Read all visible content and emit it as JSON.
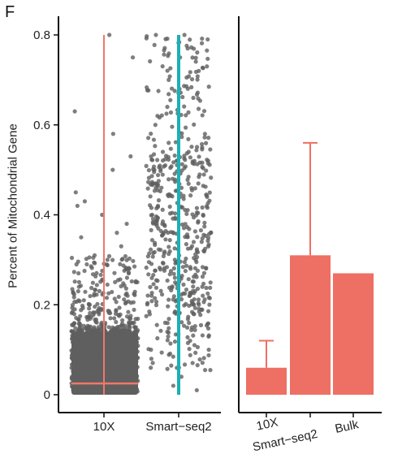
{
  "panel_label": "F",
  "colors": {
    "point": "#5f5f5f",
    "tenx_line": "#f0776b",
    "smartseq_line": "#1bb0b5",
    "bar": "#ee6f63",
    "axis": "#111111"
  },
  "chart_data": [
    {
      "type": "scatter",
      "title": "",
      "ylabel": "Percent of Mitochondrial Gene",
      "xlabel": "",
      "ylim": [
        0,
        0.82
      ],
      "yticks": [
        "0",
        "0.2",
        "0.4",
        "0.6",
        "0.8"
      ],
      "ytick_values": [
        0,
        0.2,
        0.4,
        0.6,
        0.8
      ],
      "categories": [
        "10X",
        "Smart−seq2"
      ],
      "series": [
        {
          "category": "10X",
          "summary": {
            "dense_band_max": 0.14,
            "line_min": 0.0,
            "line_max": 0.8,
            "horizontal_mark": 0.025
          },
          "sparse_values": [
            0.8,
            0.75,
            0.63,
            0.58,
            0.53,
            0.5,
            0.45,
            0.43,
            0.42,
            0.4,
            0.38,
            0.36,
            0.35,
            0.33,
            0.31,
            0.3,
            0.29,
            0.28,
            0.27,
            0.26,
            0.25,
            0.24,
            0.23,
            0.22,
            0.21,
            0.2,
            0.19,
            0.18,
            0.17,
            0.16,
            0.15
          ]
        },
        {
          "category": "Smart−seq2",
          "summary": {
            "line_min": 0.0,
            "line_max": 0.8
          },
          "sparse_values": [
            0.8,
            0.79,
            0.77,
            0.75,
            0.73,
            0.72,
            0.7,
            0.68,
            0.66,
            0.64,
            0.62,
            0.6,
            0.58,
            0.56,
            0.54,
            0.52,
            0.5,
            0.48,
            0.46,
            0.44,
            0.42,
            0.4,
            0.38,
            0.36,
            0.34,
            0.32,
            0.3,
            0.28,
            0.26,
            0.24,
            0.22,
            0.2,
            0.18,
            0.16,
            0.14,
            0.12,
            0.1,
            0.08,
            0.06,
            0.04,
            0.02,
            0.01
          ]
        }
      ]
    },
    {
      "type": "bar",
      "title": "",
      "ylabel": "",
      "xlabel": "",
      "ylim": [
        0,
        0.82
      ],
      "categories": [
        "10X",
        "Smart−seq2",
        "Bulk"
      ],
      "values": [
        0.06,
        0.31,
        0.27
      ],
      "error_upper": [
        0.12,
        0.56,
        null
      ]
    }
  ]
}
